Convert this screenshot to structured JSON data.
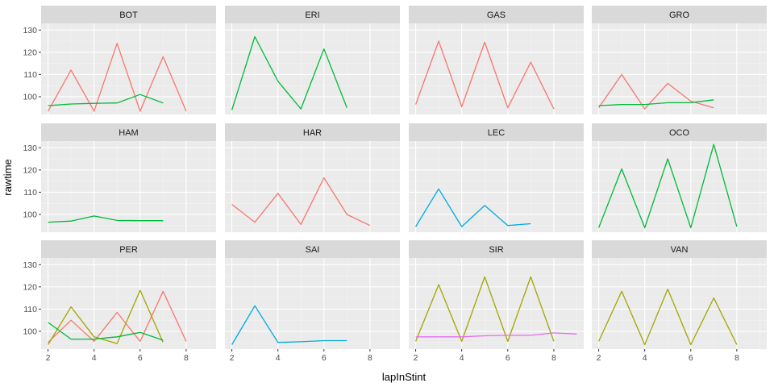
{
  "chart_data": {
    "type": "line",
    "facet_by": "driver",
    "xlabel": "lapInStint",
    "ylabel": "rawtime",
    "xlim": [
      1.7,
      9.3
    ],
    "ylim": [
      92,
      133
    ],
    "x_ticks": [
      2,
      4,
      6,
      8
    ],
    "y_ticks": [
      100,
      110,
      120,
      130
    ],
    "grid": true,
    "legend": "none",
    "colors": {
      "red": "#F8766D",
      "olive": "#A3A500",
      "green": "#00BA38",
      "blue": "#00A9E0",
      "magenta": "#E76BF3"
    },
    "panels": [
      {
        "label": "BOT",
        "series": [
          {
            "color": "red",
            "x": [
              2,
              3,
              4,
              5,
              6,
              7,
              8
            ],
            "y": [
              93.5,
              112,
              93.5,
              124,
              93.5,
              118,
              93.5
            ]
          },
          {
            "color": "green",
            "x": [
              2,
              3,
              4,
              5,
              6,
              7
            ],
            "y": [
              96,
              96.7,
              97,
              97.2,
              101,
              97.2
            ]
          }
        ]
      },
      {
        "label": "ERI",
        "series": [
          {
            "color": "green",
            "x": [
              2,
              3,
              4,
              5,
              6,
              7
            ],
            "y": [
              94,
              127,
              107,
              94.5,
              121.5,
              95
            ]
          }
        ]
      },
      {
        "label": "GAS",
        "series": [
          {
            "color": "red",
            "x": [
              2,
              3,
              4,
              5,
              6,
              7,
              8
            ],
            "y": [
              96.5,
              125,
              95.5,
              124.5,
              95,
              115.5,
              94.5
            ]
          }
        ]
      },
      {
        "label": "GRO",
        "series": [
          {
            "color": "red",
            "x": [
              2,
              3,
              4,
              5,
              6,
              7
            ],
            "y": [
              95,
              110,
              94.5,
              106,
              98,
              95
            ]
          },
          {
            "color": "green",
            "x": [
              2,
              3,
              4,
              5,
              6,
              7
            ],
            "y": [
              96,
              96.5,
              96.5,
              97.3,
              97.3,
              98.6
            ]
          }
        ]
      },
      {
        "label": "HAM",
        "series": [
          {
            "color": "green",
            "x": [
              2,
              3,
              4,
              5,
              6,
              7
            ],
            "y": [
              96.5,
              97,
              99.3,
              97.3,
              97.2,
              97.2
            ]
          }
        ]
      },
      {
        "label": "HAR",
        "series": [
          {
            "color": "red",
            "x": [
              2,
              3,
              4,
              5,
              6,
              7,
              8
            ],
            "y": [
              104.5,
              96.5,
              109.5,
              95.5,
              116.5,
              100,
              95
            ]
          }
        ]
      },
      {
        "label": "LEC",
        "series": [
          {
            "color": "blue",
            "x": [
              2,
              3,
              4,
              5,
              6,
              7
            ],
            "y": [
              94.5,
              111.5,
              94.5,
              104,
              95,
              95.8
            ]
          }
        ]
      },
      {
        "label": "OCO",
        "series": [
          {
            "color": "green",
            "x": [
              2,
              3,
              4,
              5,
              6,
              7,
              8
            ],
            "y": [
              94,
              120.5,
              94,
              125,
              94,
              131.5,
              94.5
            ]
          }
        ]
      },
      {
        "label": "PER",
        "series": [
          {
            "color": "red",
            "x": [
              2,
              3,
              4,
              5,
              6,
              7,
              8
            ],
            "y": [
              95,
              105,
              95.5,
              108.5,
              95.5,
              118,
              95.5
            ]
          },
          {
            "color": "olive",
            "x": [
              2,
              3,
              4,
              5,
              6,
              7
            ],
            "y": [
              94,
              111,
              97.5,
              94.5,
              118.5,
              95
            ]
          },
          {
            "color": "green",
            "x": [
              2,
              3,
              4,
              5,
              6,
              7
            ],
            "y": [
              104,
              96.5,
              96.5,
              97.5,
              99.5,
              96
            ]
          }
        ]
      },
      {
        "label": "SAI",
        "series": [
          {
            "color": "blue",
            "x": [
              2,
              3,
              4,
              5,
              6,
              7
            ],
            "y": [
              94,
              111.5,
              95,
              95.3,
              95.8,
              95.8
            ]
          }
        ]
      },
      {
        "label": "SIR",
        "series": [
          {
            "color": "olive",
            "x": [
              2,
              3,
              4,
              5,
              6,
              7,
              8
            ],
            "y": [
              95.5,
              121,
              95.5,
              124.5,
              95.5,
              124.5,
              95.5
            ]
          },
          {
            "color": "magenta",
            "x": [
              2,
              3,
              4,
              5,
              6,
              7,
              8,
              9
            ],
            "y": [
              97.5,
              97.5,
              97.5,
              98,
              98.2,
              98.2,
              99.3,
              98.8
            ]
          }
        ]
      },
      {
        "label": "VAN",
        "series": [
          {
            "color": "olive",
            "x": [
              2,
              3,
              4,
              5,
              6,
              7,
              8
            ],
            "y": [
              95.5,
              118,
              94,
              119,
              94,
              115,
              94
            ]
          }
        ]
      }
    ]
  }
}
